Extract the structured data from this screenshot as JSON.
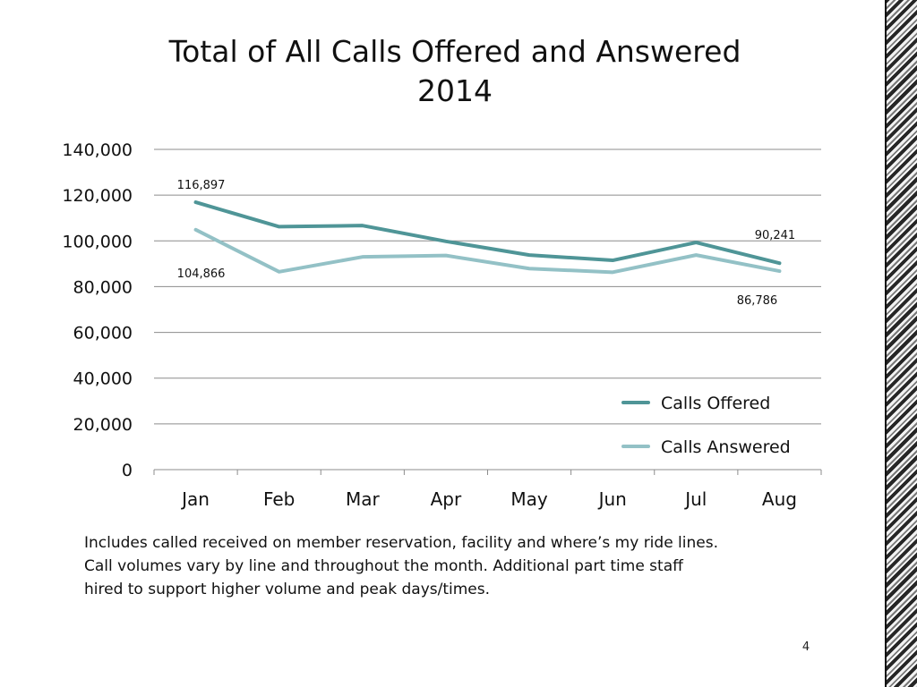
{
  "slide": {
    "title_line1": "Total of All Calls Offered and Answered",
    "title_line2": "2014",
    "notes": [
      "Includes called received on member reservation, facility and where’s my ride lines.",
      "Call volumes vary by line and throughout  the month.   Additional part time staff",
      "hired  to support higher volume and peak days/times."
    ],
    "page_number": "4"
  },
  "chart_data": {
    "type": "line",
    "title": "Total of All Calls Offered and Answered 2014",
    "categories": [
      "Jan",
      "Feb",
      "Mar",
      "Apr",
      "May",
      "Jun",
      "Jul",
      "Aug"
    ],
    "series": [
      {
        "name": "Calls Offered",
        "color": "#4f9597",
        "values": [
          116897,
          106200,
          106700,
          99800,
          93800,
          91500,
          99300,
          90241
        ]
      },
      {
        "name": "Calls Answered",
        "color": "#93c1c6",
        "values": [
          104866,
          86500,
          93000,
          93600,
          87900,
          86300,
          93800,
          86786
        ]
      }
    ],
    "ylim": [
      0,
      140000
    ],
    "yticks": [
      0,
      20000,
      40000,
      60000,
      80000,
      100000,
      120000,
      140000
    ],
    "ytick_labels": [
      "0",
      "20,000",
      "40,000",
      "60,000",
      "80,000",
      "100,000",
      "120,000",
      "140,000"
    ],
    "data_labels": [
      {
        "series": 0,
        "index": 0,
        "text": "116,897"
      },
      {
        "series": 1,
        "index": 0,
        "text": "104,866"
      },
      {
        "series": 0,
        "index": 7,
        "text": "90,241"
      },
      {
        "series": 1,
        "index": 7,
        "text": "86,786"
      }
    ],
    "grid": true,
    "legend": "bottom-right, inside plot"
  }
}
